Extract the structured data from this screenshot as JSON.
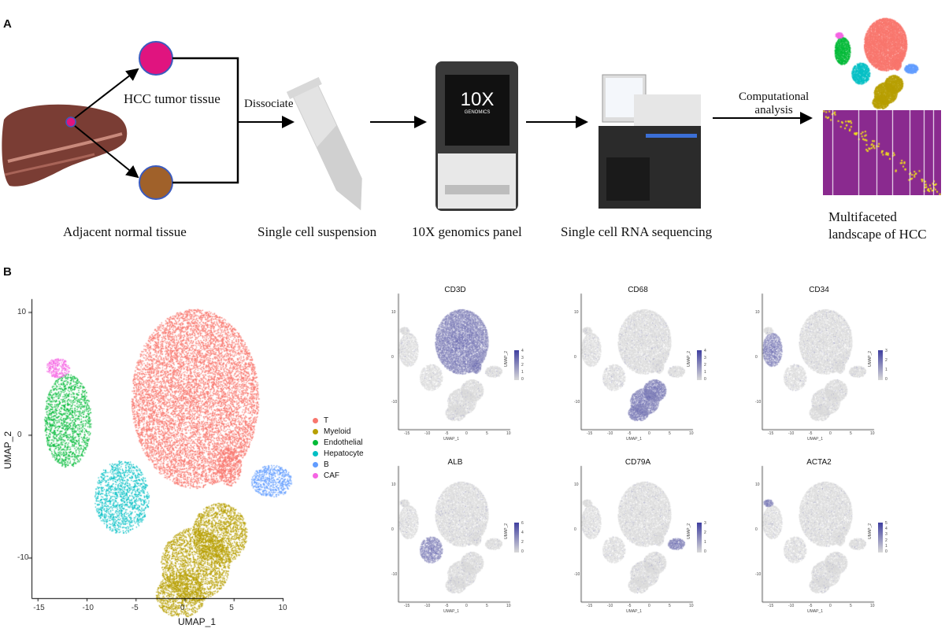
{
  "panel_a": {
    "label": "A",
    "texts": {
      "tumor": "HCC tumor tissue",
      "dissociate": "Dissociate",
      "computational": "Computational\nanalysis",
      "adjacent": "Adjacent normal tissue",
      "suspension": "Single cell suspension",
      "genomics": "10X genomics panel",
      "sequencing": "Single cell RNA sequencing",
      "landscape": "Multifaceted\nlandscape of HCC"
    },
    "device_logo": {
      "big": "10X",
      "small": "GENOMICS"
    },
    "colors": {
      "tumor": "#e0147f",
      "normal": "#a0612a",
      "liver": "#7a3d34"
    }
  },
  "panel_b": {
    "label": "B",
    "chart_data": {
      "type": "scatter",
      "xlabel": "UMAP_1",
      "ylabel": "UMAP_2",
      "xticks": [
        -15,
        -10,
        -5,
        0,
        5,
        10
      ],
      "yticks": [
        10,
        0,
        -10
      ],
      "legend_position": "right",
      "clusters": [
        {
          "name": "T",
          "color": "#F8766D"
        },
        {
          "name": "Myeloid",
          "color": "#B79F00"
        },
        {
          "name": "Endothelial",
          "color": "#00BA38"
        },
        {
          "name": "Hepatocyte",
          "color": "#00BFC4"
        },
        {
          "name": "B",
          "color": "#619CFF"
        },
        {
          "name": "CAF",
          "color": "#F564E3"
        }
      ]
    },
    "feature_plots": [
      {
        "gene": "CD3D",
        "high_in": "T",
        "max": 4,
        "ticks": [
          "4",
          "3",
          "2",
          "1",
          "0"
        ]
      },
      {
        "gene": "CD68",
        "high_in": "Myeloid",
        "max": 4,
        "ticks": [
          "4",
          "3",
          "2",
          "1",
          "0"
        ]
      },
      {
        "gene": "CD34",
        "high_in": "Endothelial",
        "max": 3,
        "ticks": [
          "3",
          "2",
          "1",
          "0"
        ]
      },
      {
        "gene": "ALB",
        "high_in": "Hepatocyte",
        "max": 6,
        "ticks": [
          "6",
          "4",
          "2",
          "0"
        ]
      },
      {
        "gene": "CD79A",
        "high_in": "B",
        "max": 3,
        "ticks": [
          "3",
          "2",
          "1",
          "0"
        ]
      },
      {
        "gene": "ACTA2",
        "high_in": "CAF",
        "max": 5,
        "ticks": [
          "5",
          "4",
          "3",
          "2",
          "1",
          "0"
        ]
      }
    ],
    "feature_axes": {
      "xlabel": "UMAP_1",
      "ylabel": "UMAP_2",
      "xticks": [
        "-15",
        "-10",
        "-5",
        "0",
        "5",
        "10"
      ],
      "yticks": [
        "10",
        "0",
        "-10"
      ]
    },
    "low_color": "#d9d9d9",
    "high_color": "#3f3fa0"
  }
}
